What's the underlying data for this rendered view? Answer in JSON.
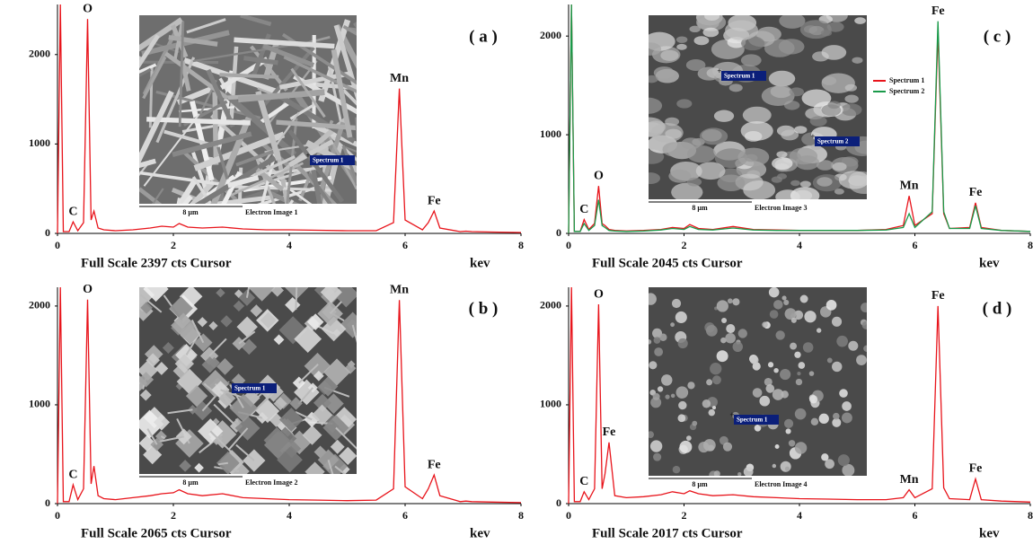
{
  "chart_data": [
    {
      "type": "line",
      "panel_label": "( a )",
      "footer": "Full Scale 2397 cts Cursor",
      "x_unit": "kev",
      "xlim": [
        0,
        8
      ],
      "xticks": [
        0,
        2,
        4,
        6,
        8
      ],
      "ylim": [
        0,
        2560
      ],
      "yticks": [
        0,
        1000,
        2000
      ],
      "color": "#e8141b",
      "x": [
        0,
        0.05,
        0.1,
        0.2,
        0.27,
        0.35,
        0.45,
        0.52,
        0.58,
        0.63,
        0.7,
        0.8,
        1.0,
        1.3,
        1.6,
        1.8,
        2.0,
        2.1,
        2.25,
        2.5,
        2.85,
        3.2,
        3.6,
        4.0,
        4.5,
        5.0,
        5.5,
        5.8,
        5.9,
        6.0,
        6.3,
        6.4,
        6.5,
        6.6,
        6.95,
        7.05,
        7.15,
        7.5,
        8.0
      ],
      "values": [
        0,
        2560,
        20,
        20,
        130,
        30,
        120,
        2397,
        150,
        250,
        60,
        40,
        30,
        40,
        60,
        80,
        70,
        110,
        70,
        60,
        70,
        50,
        40,
        40,
        35,
        30,
        30,
        120,
        1620,
        150,
        40,
        120,
        250,
        60,
        20,
        25,
        20,
        15,
        10
      ],
      "annotations": [
        {
          "text": "C",
          "x": 0.27
        },
        {
          "text": "O",
          "x": 0.52
        },
        {
          "text": "Mn",
          "x": 5.9
        },
        {
          "text": "Fe",
          "x": 6.5
        }
      ],
      "inset": {
        "scale_bar": "8 µm",
        "caption": "Electron Image 1",
        "markers": [
          "Spectrum 1"
        ]
      }
    },
    {
      "type": "line",
      "panel_label": "( b )",
      "footer": "Full Scale 2065 cts Cursor",
      "x_unit": "kev",
      "xlim": [
        0,
        8
      ],
      "xticks": [
        0,
        2,
        4,
        6,
        8
      ],
      "ylim": [
        0,
        2190
      ],
      "yticks": [
        0,
        1000,
        2000
      ],
      "color": "#e8141b",
      "x": [
        0,
        0.05,
        0.1,
        0.2,
        0.27,
        0.35,
        0.45,
        0.52,
        0.58,
        0.63,
        0.7,
        0.8,
        1.0,
        1.3,
        1.6,
        1.8,
        2.0,
        2.1,
        2.25,
        2.5,
        2.85,
        3.2,
        3.6,
        4.0,
        4.5,
        5.0,
        5.5,
        5.8,
        5.9,
        6.0,
        6.3,
        6.4,
        6.5,
        6.6,
        6.95,
        7.05,
        7.15,
        7.5,
        8.0
      ],
      "values": [
        0,
        2190,
        20,
        20,
        190,
        40,
        150,
        2065,
        200,
        380,
        80,
        50,
        40,
        60,
        80,
        100,
        110,
        140,
        100,
        80,
        100,
        60,
        50,
        40,
        35,
        30,
        35,
        150,
        2060,
        170,
        50,
        150,
        290,
        80,
        20,
        25,
        20,
        15,
        10
      ],
      "annotations": [
        {
          "text": "C",
          "x": 0.27
        },
        {
          "text": "O",
          "x": 0.52
        },
        {
          "text": "Mn",
          "x": 5.9
        },
        {
          "text": "Fe",
          "x": 6.5
        }
      ],
      "inset": {
        "scale_bar": "8 µm",
        "caption": "Electron Image 2",
        "markers": [
          "Spectrum 1"
        ]
      }
    },
    {
      "type": "line",
      "panel_label": "( c )",
      "footer": "Full Scale 2045 cts Cursor",
      "x_unit": "kev",
      "xlim": [
        0,
        8
      ],
      "xticks": [
        0,
        2,
        4,
        6,
        8
      ],
      "ylim": [
        0,
        2320
      ],
      "yticks": [
        0,
        1000,
        2000
      ],
      "x": [
        0,
        0.05,
        0.1,
        0.2,
        0.27,
        0.35,
        0.45,
        0.52,
        0.58,
        0.63,
        0.7,
        0.8,
        1.0,
        1.3,
        1.6,
        1.8,
        2.0,
        2.1,
        2.25,
        2.5,
        2.85,
        3.2,
        3.6,
        4.0,
        4.5,
        5.0,
        5.5,
        5.8,
        5.9,
        6.0,
        6.3,
        6.4,
        6.5,
        6.6,
        6.95,
        7.05,
        7.15,
        7.5,
        8.0
      ],
      "series": [
        {
          "name": "Spectrum 1",
          "color": "#e8141b",
          "values": [
            0,
            2320,
            20,
            20,
            140,
            40,
            100,
            480,
            100,
            80,
            40,
            30,
            25,
            30,
            40,
            60,
            50,
            90,
            50,
            40,
            70,
            40,
            35,
            30,
            30,
            30,
            40,
            80,
            380,
            80,
            200,
            2045,
            200,
            50,
            60,
            310,
            60,
            30,
            20
          ]
        },
        {
          "name": "Spectrum 2",
          "color": "#1a9a4a",
          "values": [
            0,
            2320,
            20,
            20,
            100,
            30,
            80,
            340,
            80,
            60,
            30,
            25,
            20,
            25,
            35,
            50,
            40,
            70,
            40,
            35,
            55,
            35,
            30,
            30,
            30,
            30,
            35,
            60,
            200,
            60,
            220,
            2150,
            220,
            50,
            50,
            280,
            50,
            30,
            20
          ]
        }
      ],
      "annotations": [
        {
          "text": "C",
          "x": 0.27
        },
        {
          "text": "O",
          "x": 0.52
        },
        {
          "text": "Mn",
          "x": 5.9
        },
        {
          "text": "Fe",
          "x": 6.4
        },
        {
          "text": "Fe",
          "x": 7.05
        }
      ],
      "inset": {
        "scale_bar": "8 µm",
        "caption": "Electron Image 3",
        "markers": [
          "Spectrum 1",
          "Spectrum 2"
        ]
      }
    },
    {
      "type": "line",
      "panel_label": "( d )",
      "footer": "Full Scale 2017 cts Cursor",
      "x_unit": "kev",
      "xlim": [
        0,
        8
      ],
      "xticks": [
        0,
        2,
        4,
        6,
        8
      ],
      "ylim": [
        0,
        2190
      ],
      "yticks": [
        0,
        1000,
        2000
      ],
      "color": "#e8141b",
      "x": [
        0,
        0.05,
        0.1,
        0.2,
        0.27,
        0.35,
        0.45,
        0.52,
        0.58,
        0.63,
        0.7,
        0.8,
        1.0,
        1.3,
        1.6,
        1.8,
        2.0,
        2.1,
        2.25,
        2.5,
        2.85,
        3.2,
        3.6,
        4.0,
        4.5,
        5.0,
        5.5,
        5.8,
        5.9,
        6.0,
        6.3,
        6.4,
        6.5,
        6.6,
        6.95,
        7.05,
        7.15,
        7.5,
        8.0
      ],
      "values": [
        0,
        2190,
        20,
        20,
        120,
        40,
        150,
        2017,
        150,
        300,
        620,
        80,
        60,
        70,
        90,
        120,
        100,
        130,
        100,
        80,
        90,
        70,
        60,
        50,
        45,
        40,
        40,
        60,
        140,
        60,
        150,
        2000,
        160,
        50,
        40,
        250,
        40,
        25,
        15
      ],
      "annotations": [
        {
          "text": "C",
          "x": 0.27
        },
        {
          "text": "O",
          "x": 0.52
        },
        {
          "text": "Fe",
          "x": 0.7
        },
        {
          "text": "Mn",
          "x": 5.9
        },
        {
          "text": "Fe",
          "x": 6.4
        },
        {
          "text": "Fe",
          "x": 7.05
        }
      ],
      "inset": {
        "scale_bar": "8 µm",
        "caption": "Electron Image 4",
        "markers": [
          "Spectrum 1"
        ]
      }
    }
  ]
}
